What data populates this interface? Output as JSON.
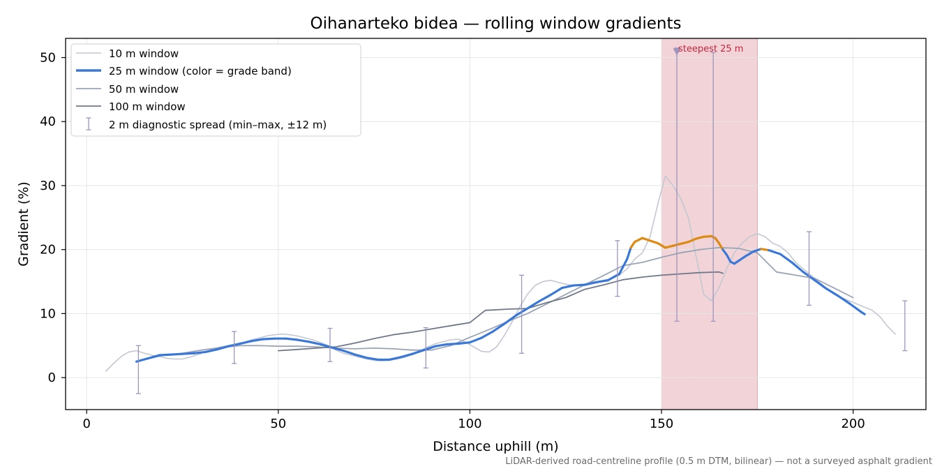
{
  "colors": {
    "w10": "#c2c8d2",
    "w25_blue": "#3a78d8",
    "w25_orange": "#dc8a12",
    "w50": "#9aa4b4",
    "w100": "#6f7788",
    "spread": "#9c95bd",
    "steep_band": "#f2d4d8",
    "steep_label": "#c2263c",
    "grid": "#e6e6e6"
  },
  "chart_data": {
    "type": "line",
    "title": "Oihanarteko bidea — rolling window gradients",
    "xlabel": "Distance uphill (m)",
    "ylabel": "Gradient (%)",
    "xlim": [
      -5.5,
      219
    ],
    "ylim": [
      -5,
      53
    ],
    "xticks": [
      0,
      50,
      100,
      150,
      200
    ],
    "yticks": [
      0,
      10,
      20,
      30,
      40,
      50
    ],
    "grid": true,
    "legend_position": "upper-left",
    "steepest_band": {
      "x_start": 150,
      "x_end": 175,
      "label": "steepest 25 m",
      "marker_x": 154,
      "marker_y": 51
    },
    "series": [
      {
        "name": "10 m window",
        "x": [
          5,
          7,
          9,
          11,
          13,
          15,
          17,
          19,
          21,
          23,
          25,
          27,
          29,
          31,
          33,
          35,
          37,
          39,
          41,
          43,
          45,
          47,
          49,
          51,
          53,
          55,
          57,
          59,
          61,
          63,
          65,
          67,
          69,
          71,
          73,
          75,
          77,
          79,
          81,
          83,
          85,
          87,
          89,
          91,
          93,
          95,
          97,
          99,
          101,
          103,
          105,
          107,
          109,
          111,
          113,
          115,
          117,
          119,
          121,
          123,
          125,
          127,
          129,
          131,
          133,
          135,
          137,
          139,
          141,
          143,
          145,
          147,
          149,
          151,
          153,
          155,
          157,
          159,
          161,
          163,
          165,
          167,
          169,
          171,
          173,
          175,
          177,
          179,
          181,
          183,
          185,
          187,
          189,
          191,
          193,
          195,
          197,
          199,
          201,
          203,
          205,
          207,
          209,
          211
        ],
        "values": [
          1.0,
          2.2,
          3.3,
          4.0,
          4.2,
          3.8,
          3.5,
          3.3,
          3.0,
          2.9,
          2.9,
          3.2,
          3.6,
          4.0,
          4.5,
          4.8,
          5.0,
          5.2,
          5.5,
          5.9,
          6.2,
          6.5,
          6.7,
          6.8,
          6.7,
          6.5,
          6.2,
          5.9,
          5.5,
          5.0,
          4.3,
          3.8,
          3.5,
          3.2,
          2.9,
          2.7,
          2.6,
          2.7,
          2.9,
          3.2,
          3.6,
          4.2,
          4.8,
          5.3,
          5.6,
          5.9,
          6.0,
          5.5,
          4.8,
          4.1,
          4.0,
          4.8,
          6.6,
          8.7,
          11.0,
          13.0,
          14.4,
          15.0,
          15.2,
          14.9,
          14.6,
          14.4,
          14.5,
          14.8,
          15.0,
          15.2,
          15.5,
          16.0,
          17.0,
          18.5,
          19.5,
          22.0,
          27.0,
          31.5,
          30.0,
          28.0,
          25.0,
          19.0,
          13.0,
          12.0,
          14.0,
          17.0,
          19.5,
          21.0,
          22.0,
          22.5,
          22.0,
          21.0,
          20.5,
          19.5,
          18.0,
          17.0,
          16.0,
          15.0,
          14.0,
          13.0,
          12.5,
          12.0,
          11.5,
          11.0,
          10.5,
          9.5,
          8.0,
          6.8
        ]
      },
      {
        "name": "25 m window (color = grade band)",
        "x": [
          13,
          16,
          19,
          22,
          25,
          28,
          31,
          34,
          37,
          40,
          43,
          46,
          49,
          52,
          55,
          58,
          61,
          64,
          67,
          70,
          73,
          76,
          79,
          82,
          85,
          88,
          91,
          94,
          97,
          100,
          103,
          106,
          109,
          112,
          115,
          118,
          121,
          124,
          127,
          130,
          133,
          136,
          139,
          141,
          142,
          143,
          145,
          147,
          149,
          151,
          153,
          155,
          157,
          159,
          161,
          163,
          164,
          165,
          166,
          167,
          168,
          169,
          170,
          172,
          174,
          176,
          178,
          181,
          184,
          187,
          190,
          193,
          196,
          199,
          202,
          203
        ],
        "values": [
          2.5,
          3.0,
          3.5,
          3.6,
          3.7,
          3.8,
          4.0,
          4.4,
          4.9,
          5.3,
          5.7,
          6.0,
          6.1,
          6.1,
          5.9,
          5.6,
          5.2,
          4.7,
          4.2,
          3.6,
          3.1,
          2.8,
          2.8,
          3.2,
          3.7,
          4.3,
          4.9,
          5.2,
          5.3,
          5.5,
          6.2,
          7.2,
          8.4,
          9.7,
          10.8,
          11.9,
          12.9,
          14.0,
          14.4,
          14.5,
          14.9,
          15.2,
          16.2,
          18.5,
          20.3,
          21.2,
          21.8,
          21.4,
          21.0,
          20.3,
          20.6,
          20.9,
          21.2,
          21.7,
          22.0,
          22.1,
          21.8,
          21.0,
          20.0,
          19.2,
          18.1,
          17.8,
          18.2,
          19.0,
          19.7,
          20.1,
          19.9,
          19.3,
          18.0,
          16.5,
          15.2,
          13.9,
          12.8,
          11.6,
          10.3,
          9.9
        ]
      },
      {
        "name": "50 m window",
        "x": [
          13,
          20,
          25,
          30,
          35,
          40,
          45,
          50,
          55,
          60,
          65,
          70,
          75,
          80,
          85,
          90,
          95,
          100,
          105,
          110,
          115,
          120,
          125,
          130,
          135,
          140,
          145,
          150,
          155,
          160,
          165,
          170,
          175,
          180,
          185,
          190,
          195,
          200
        ],
        "values": [
          2.5,
          3.5,
          3.8,
          4.3,
          4.7,
          5.0,
          5.0,
          4.9,
          4.9,
          4.8,
          4.6,
          4.5,
          4.6,
          4.5,
          4.3,
          4.3,
          5.0,
          6.3,
          7.5,
          8.8,
          10.0,
          11.5,
          13.0,
          14.5,
          16.0,
          17.5,
          18.0,
          18.8,
          19.5,
          20.0,
          20.3,
          20.2,
          19.5,
          16.5,
          16.0,
          15.5,
          14.0,
          12.5
        ]
      },
      {
        "name": "100 m window",
        "x": [
          50,
          55,
          60,
          65,
          70,
          75,
          80,
          85,
          90,
          95,
          100,
          104,
          110,
          115,
          120,
          125,
          130,
          135,
          140,
          145,
          150,
          155,
          160,
          165,
          166
        ],
        "values": [
          4.2,
          4.4,
          4.6,
          4.8,
          5.4,
          6.1,
          6.7,
          7.1,
          7.6,
          8.1,
          8.6,
          10.5,
          10.7,
          10.8,
          11.7,
          12.5,
          13.8,
          14.5,
          15.3,
          15.7,
          16.0,
          16.2,
          16.4,
          16.5,
          16.3
        ]
      },
      {
        "name": "2 m diagnostic spread (min–max, ±12 m)",
        "type": "errorbar",
        "x": [
          13.5,
          38.5,
          63.5,
          88.5,
          113.5,
          138.5,
          154.0,
          163.5,
          188.5,
          213.5
        ],
        "low": [
          -2.5,
          2.2,
          2.5,
          1.5,
          3.8,
          12.7,
          8.8,
          8.8,
          11.3,
          4.2
        ],
        "high": [
          5.0,
          7.2,
          7.7,
          7.8,
          16.0,
          21.4,
          51.5,
          50.8,
          22.8,
          12.0
        ]
      }
    ],
    "annotations": {
      "footnote": "LiDAR-derived road-centreline profile (0.5 m DTM, bilinear) — not a surveyed asphalt gradient"
    }
  }
}
